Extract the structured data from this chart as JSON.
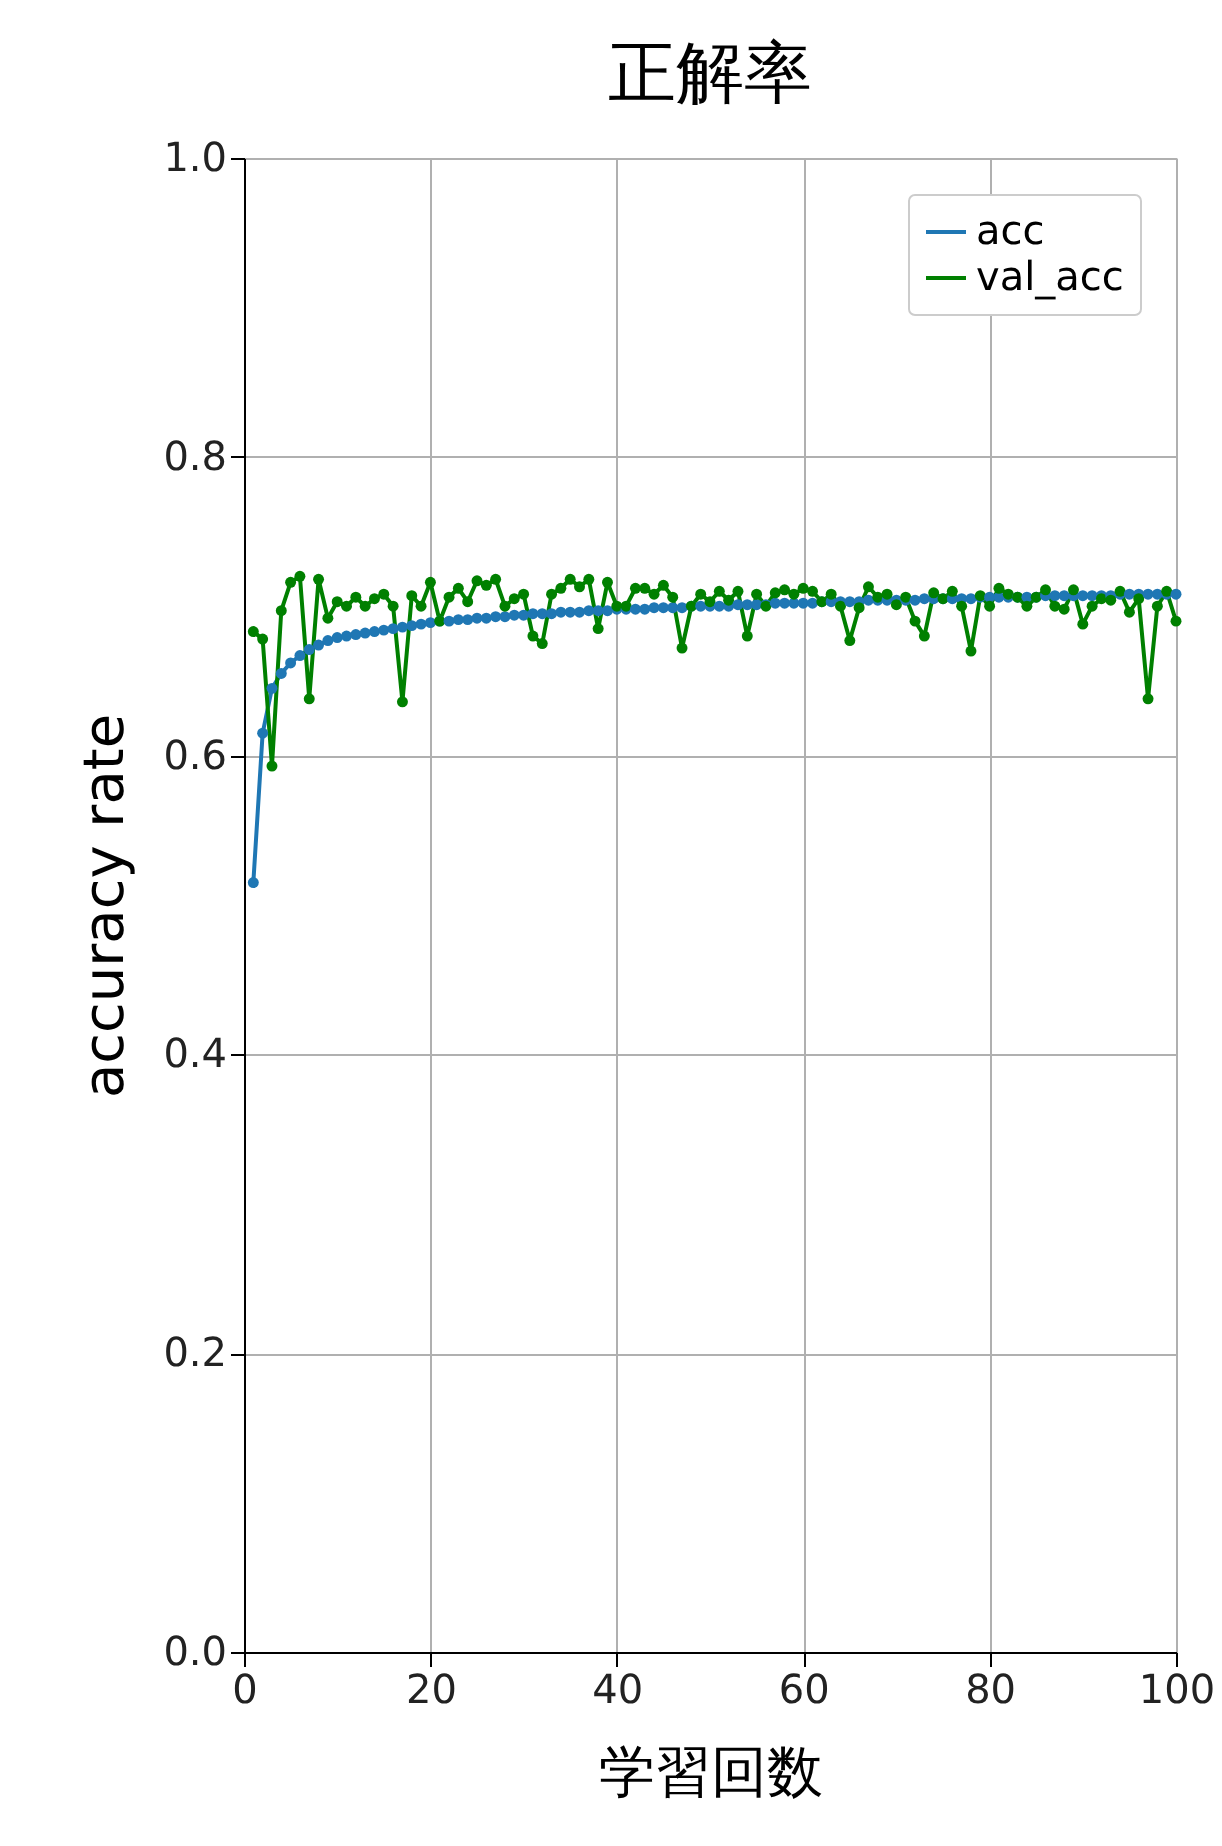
{
  "chart_data": {
    "type": "line",
    "title": "正解率",
    "xlabel": "学習回数",
    "ylabel": "accuracy rate",
    "x": [
      1,
      2,
      3,
      4,
      5,
      6,
      7,
      8,
      9,
      10,
      11,
      12,
      13,
      14,
      15,
      16,
      17,
      18,
      19,
      20,
      21,
      22,
      23,
      24,
      25,
      26,
      27,
      28,
      29,
      30,
      31,
      32,
      33,
      34,
      35,
      36,
      37,
      38,
      39,
      40,
      41,
      42,
      43,
      44,
      45,
      46,
      47,
      48,
      49,
      50,
      51,
      52,
      53,
      54,
      55,
      56,
      57,
      58,
      59,
      60,
      61,
      62,
      63,
      64,
      65,
      66,
      67,
      68,
      69,
      70,
      71,
      72,
      73,
      74,
      75,
      76,
      77,
      78,
      79,
      80,
      81,
      82,
      83,
      84,
      85,
      86,
      87,
      88,
      89,
      90,
      91,
      92,
      93,
      94,
      95,
      96,
      97,
      98,
      99,
      100
    ],
    "series": [
      {
        "name": "acc",
        "color": "#1f77b4",
        "values": [
          0.515,
          0.615,
          0.645,
          0.655,
          0.662,
          0.667,
          0.671,
          0.674,
          0.677,
          0.679,
          0.68,
          0.681,
          0.682,
          0.683,
          0.684,
          0.685,
          0.686,
          0.687,
          0.688,
          0.689,
          0.69,
          0.69,
          0.691,
          0.691,
          0.692,
          0.692,
          0.693,
          0.693,
          0.694,
          0.694,
          0.695,
          0.695,
          0.695,
          0.696,
          0.696,
          0.696,
          0.697,
          0.697,
          0.697,
          0.698,
          0.698,
          0.698,
          0.698,
          0.699,
          0.699,
          0.699,
          0.699,
          0.7,
          0.7,
          0.7,
          0.7,
          0.7,
          0.701,
          0.701,
          0.701,
          0.701,
          0.702,
          0.702,
          0.702,
          0.702,
          0.702,
          0.703,
          0.703,
          0.703,
          0.703,
          0.703,
          0.704,
          0.704,
          0.704,
          0.704,
          0.704,
          0.704,
          0.705,
          0.705,
          0.705,
          0.705,
          0.705,
          0.705,
          0.706,
          0.706,
          0.706,
          0.706,
          0.706,
          0.706,
          0.706,
          0.707,
          0.707,
          0.707,
          0.707,
          0.707,
          0.707,
          0.707,
          0.707,
          0.708,
          0.708,
          0.708,
          0.708,
          0.708,
          0.708,
          0.708
        ]
      },
      {
        "name": "val_acc",
        "color": "#008000",
        "values": [
          0.683,
          0.678,
          0.593,
          0.697,
          0.716,
          0.72,
          0.638,
          0.718,
          0.692,
          0.703,
          0.7,
          0.706,
          0.7,
          0.705,
          0.708,
          0.7,
          0.636,
          0.707,
          0.7,
          0.716,
          0.69,
          0.706,
          0.712,
          0.703,
          0.717,
          0.714,
          0.718,
          0.7,
          0.705,
          0.708,
          0.68,
          0.675,
          0.708,
          0.712,
          0.718,
          0.713,
          0.718,
          0.685,
          0.716,
          0.7,
          0.7,
          0.712,
          0.712,
          0.708,
          0.714,
          0.706,
          0.672,
          0.7,
          0.708,
          0.703,
          0.71,
          0.704,
          0.71,
          0.68,
          0.708,
          0.7,
          0.709,
          0.711,
          0.708,
          0.712,
          0.71,
          0.703,
          0.708,
          0.7,
          0.677,
          0.699,
          0.713,
          0.706,
          0.708,
          0.701,
          0.706,
          0.69,
          0.68,
          0.709,
          0.705,
          0.71,
          0.7,
          0.67,
          0.707,
          0.7,
          0.712,
          0.708,
          0.706,
          0.7,
          0.706,
          0.711,
          0.7,
          0.698,
          0.711,
          0.688,
          0.7,
          0.705,
          0.704,
          0.71,
          0.696,
          0.705,
          0.638,
          0.7,
          0.71,
          0.69
        ]
      }
    ],
    "xlim": [
      0,
      100
    ],
    "xticks": [
      0,
      20,
      40,
      60,
      80,
      100
    ],
    "ylim": [
      0,
      1
    ],
    "yticks": [
      {
        "value": 0,
        "label": "0.0"
      },
      {
        "value": 0.2,
        "label": "0.2"
      },
      {
        "value": 0.4,
        "label": "0.4"
      },
      {
        "value": 0.6,
        "label": "0.6"
      },
      {
        "value": 0.8,
        "label": "0.8"
      },
      {
        "value": 1,
        "label": "1.0"
      }
    ],
    "grid": true,
    "legend": "top right",
    "marker": "circle",
    "line_style": "solid"
  }
}
